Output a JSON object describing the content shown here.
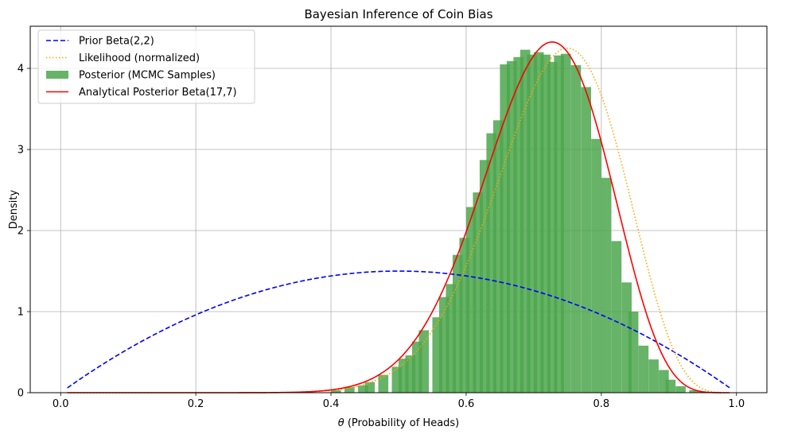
{
  "chart_data": {
    "type": "area",
    "title": "Bayesian Inference of Coin Bias",
    "xlabel_symbol": "θ",
    "xlabel": " (Probability of Heads)",
    "ylabel": "Density",
    "xlim": [
      -0.045,
      1.045
    ],
    "ylim": [
      0,
      4.52
    ],
    "xticks": [
      0.0,
      0.2,
      0.4,
      0.6,
      0.8,
      1.0
    ],
    "xtick_labels": [
      "0.0",
      "0.2",
      "0.4",
      "0.6",
      "0.8",
      "1.0"
    ],
    "yticks": [
      0,
      1,
      2,
      3,
      4
    ],
    "ytick_labels": [
      "0",
      "1",
      "2",
      "3",
      "4"
    ],
    "grid": true,
    "legend_position": "top-left",
    "series": [
      {
        "name": "Prior Beta(2,2)",
        "kind": "line",
        "color": "#0000ff",
        "style": "dashed",
        "alpha": 2,
        "beta": 2,
        "x_range": [
          0.01,
          0.99
        ]
      },
      {
        "name": "Likelihood (normalized)",
        "kind": "line",
        "color": "#ffa500",
        "style": "dotted",
        "alpha": 16,
        "beta": 6,
        "x_range": [
          0.01,
          0.99
        ]
      },
      {
        "name": "Posterior (MCMC Samples)",
        "kind": "histogram",
        "color": "#4ca64c",
        "bins": [
          [
            0.4,
            0.03
          ],
          [
            0.42,
            0.07
          ],
          [
            0.44,
            0.09
          ],
          [
            0.45,
            0.13
          ],
          [
            0.47,
            0.22
          ],
          [
            0.49,
            0.32
          ],
          [
            0.5,
            0.42
          ],
          [
            0.51,
            0.46
          ],
          [
            0.52,
            0.63
          ],
          [
            0.53,
            0.77
          ],
          [
            0.55,
            0.93
          ],
          [
            0.56,
            1.18
          ],
          [
            0.57,
            1.34
          ],
          [
            0.58,
            1.7
          ],
          [
            0.59,
            1.91
          ],
          [
            0.6,
            2.29
          ],
          [
            0.61,
            2.47
          ],
          [
            0.62,
            2.87
          ],
          [
            0.63,
            3.2
          ],
          [
            0.64,
            3.36
          ],
          [
            0.65,
            4.05
          ],
          [
            0.66,
            4.09
          ],
          [
            0.67,
            4.14
          ],
          [
            0.68,
            4.23
          ],
          [
            0.69,
            4.17
          ],
          [
            0.7,
            4.2
          ],
          [
            0.71,
            4.17
          ],
          [
            0.72,
            4.08
          ],
          [
            0.73,
            4.16
          ],
          [
            0.74,
            4.18
          ],
          [
            0.755,
            4.04
          ],
          [
            0.77,
            3.77
          ],
          [
            0.785,
            3.13
          ],
          [
            0.8,
            2.65
          ],
          [
            0.815,
            1.87
          ],
          [
            0.83,
            1.36
          ],
          [
            0.84,
            1.0
          ],
          [
            0.855,
            0.58
          ],
          [
            0.87,
            0.41
          ],
          [
            0.885,
            0.28
          ],
          [
            0.895,
            0.16
          ],
          [
            0.91,
            0.08
          ],
          [
            0.93,
            0.03
          ],
          [
            0.945,
            0.01
          ]
        ],
        "bin_width": 0.0145
      },
      {
        "name": "Analytical Posterior Beta(17,7)",
        "kind": "line",
        "color": "#ff0000",
        "style": "solid",
        "alpha": 17,
        "beta": 7,
        "x_range": [
          0.01,
          0.99
        ]
      }
    ]
  }
}
